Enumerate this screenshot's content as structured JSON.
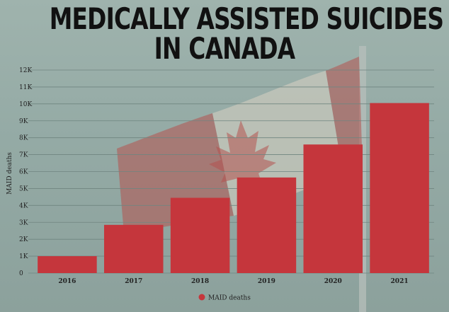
{
  "title_lines": [
    "MEDICALLY ASSISTED SUICIDES",
    "IN CANADA"
  ],
  "colors": {
    "bar": "#c5363c",
    "grid": "#6f8580",
    "background": "#9fb3ad"
  },
  "chart_data": {
    "type": "bar",
    "title": "MEDICALLY ASSISTED SUICIDES IN CANADA",
    "categories": [
      "2016",
      "2017",
      "2018",
      "2019",
      "2020",
      "2021"
    ],
    "series": [
      {
        "name": "MAID deaths",
        "values": [
          1000,
          2850,
          4450,
          5650,
          7600,
          10050
        ]
      }
    ],
    "xlabel": "",
    "ylabel": "MAID deaths",
    "ylim": [
      0,
      12000
    ],
    "yticks": [
      0,
      1000,
      2000,
      3000,
      4000,
      5000,
      6000,
      7000,
      8000,
      9000,
      10000,
      11000,
      12000
    ],
    "ytick_labels": [
      "0",
      "1K",
      "2K",
      "3K",
      "4K",
      "5K",
      "6K",
      "7K",
      "8K",
      "9K",
      "10K",
      "11K",
      "12K"
    ],
    "grid": true,
    "legend_position": "bottom-center"
  }
}
